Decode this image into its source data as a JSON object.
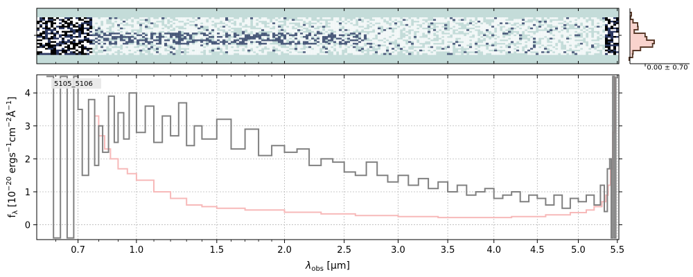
{
  "chart_data": [
    {
      "type": "heatmap",
      "panel": "2d-spectrum",
      "x_scale": "sqrt",
      "xlim": [
        0.52,
        5.52
      ],
      "y_ticks": [
        ""
      ],
      "colormap": [
        "#c4dcd9",
        "#ffffff",
        "#2a3760",
        "#000000"
      ],
      "background": "#c4dcd9"
    },
    {
      "type": "line",
      "panel": "1d-spectrum",
      "x_scale": "sqrt",
      "xlim": [
        0.52,
        5.52
      ],
      "ylim": [
        -0.45,
        4.55
      ],
      "xlabel": "λ",
      "xlabel_sub": "obs",
      "xlabel_unit": "[μm]",
      "ylabel": "f",
      "ylabel_sub": "λ",
      "ylabel_unit_open": "[10",
      "ylabel_exp1": "−20",
      "ylabel_mid": "ergs",
      "ylabel_exp2": "−1",
      "ylabel_mid2": "cm",
      "ylabel_exp3": "−2",
      "ylabel_mid3": "Å",
      "ylabel_exp4": "−1",
      "ylabel_close": "]",
      "x_tick_labels": [
        "0.7",
        "1.0",
        "1.5",
        "2.0",
        "2.5",
        "3.0",
        "3.5",
        "4.0",
        "4.5",
        "5.0",
        "5.5"
      ],
      "x_ticks": [
        0.7,
        1.0,
        1.5,
        2.0,
        2.5,
        3.0,
        3.5,
        4.0,
        4.5,
        5.0,
        5.5
      ],
      "x_minor_ticks": [
        0.6,
        0.8,
        0.9,
        1.1,
        1.2,
        1.3,
        1.4,
        1.6,
        1.7,
        1.8,
        1.9
      ],
      "y_ticks": [
        0,
        1,
        2,
        3,
        4
      ],
      "y_tick_labels": [
        "0",
        "1",
        "2",
        "3",
        "4"
      ],
      "grid": true,
      "annotation": "5105_5106",
      "series": [
        {
          "role": "flux",
          "color": "#808080",
          "x": [
            0.56,
            0.59,
            0.62,
            0.65,
            0.68,
            0.7,
            0.72,
            0.75,
            0.78,
            0.8,
            0.82,
            0.85,
            0.88,
            0.9,
            0.93,
            0.96,
            1.0,
            1.05,
            1.1,
            1.15,
            1.2,
            1.25,
            1.3,
            1.35,
            1.4,
            1.5,
            1.6,
            1.7,
            1.8,
            1.9,
            2.0,
            2.1,
            2.2,
            2.3,
            2.4,
            2.5,
            2.6,
            2.7,
            2.8,
            2.9,
            3.0,
            3.1,
            3.2,
            3.3,
            3.4,
            3.5,
            3.6,
            3.7,
            3.8,
            3.9,
            4.0,
            4.1,
            4.2,
            4.3,
            4.4,
            4.5,
            4.6,
            4.7,
            4.8,
            4.9,
            5.0,
            5.1,
            5.2,
            5.28,
            5.33,
            5.37,
            5.4,
            5.42,
            5.44,
            5.46,
            5.48
          ],
          "y": [
            4.5,
            -0.4,
            4.5,
            -0.4,
            4.5,
            3.5,
            1.5,
            3.8,
            1.8,
            3.0,
            2.2,
            3.9,
            2.5,
            3.4,
            2.6,
            4.0,
            2.8,
            3.6,
            2.5,
            3.3,
            2.7,
            3.7,
            2.4,
            3.0,
            2.6,
            3.2,
            2.3,
            2.9,
            2.1,
            2.4,
            2.2,
            2.3,
            1.8,
            2.0,
            1.9,
            1.6,
            1.5,
            1.9,
            1.5,
            1.3,
            1.5,
            1.2,
            1.4,
            1.1,
            1.3,
            1.0,
            1.2,
            0.9,
            1.0,
            1.1,
            0.8,
            0.9,
            1.0,
            0.7,
            0.9,
            0.8,
            0.6,
            0.9,
            0.5,
            0.8,
            0.7,
            0.9,
            0.6,
            1.2,
            0.4,
            1.7,
            2.0,
            -0.4,
            4.5,
            -0.4,
            4.5
          ]
        },
        {
          "role": "uncertainty",
          "color": "#f7b9b9",
          "x": [
            0.78,
            0.8,
            0.83,
            0.86,
            0.9,
            0.95,
            1.0,
            1.1,
            1.2,
            1.3,
            1.4,
            1.5,
            1.7,
            2.0,
            2.3,
            2.6,
            3.0,
            3.4,
            3.8,
            4.2,
            4.6,
            4.9,
            5.1,
            5.2,
            5.3,
            5.35,
            5.38,
            5.41,
            5.44,
            5.47
          ],
          "y": [
            3.3,
            2.7,
            2.3,
            2.0,
            1.7,
            1.55,
            1.35,
            1.0,
            0.8,
            0.6,
            0.55,
            0.5,
            0.45,
            0.38,
            0.33,
            0.28,
            0.25,
            0.22,
            0.22,
            0.25,
            0.3,
            0.37,
            0.45,
            0.55,
            0.7,
            0.9,
            1.2,
            1.7,
            2.8,
            4.5
          ]
        }
      ]
    },
    {
      "type": "histogram",
      "panel": "profile",
      "x_tick_label": "0.00 ± 0.70",
      "color": "#f7c0b8",
      "line_color": "#5a3a2a"
    }
  ]
}
